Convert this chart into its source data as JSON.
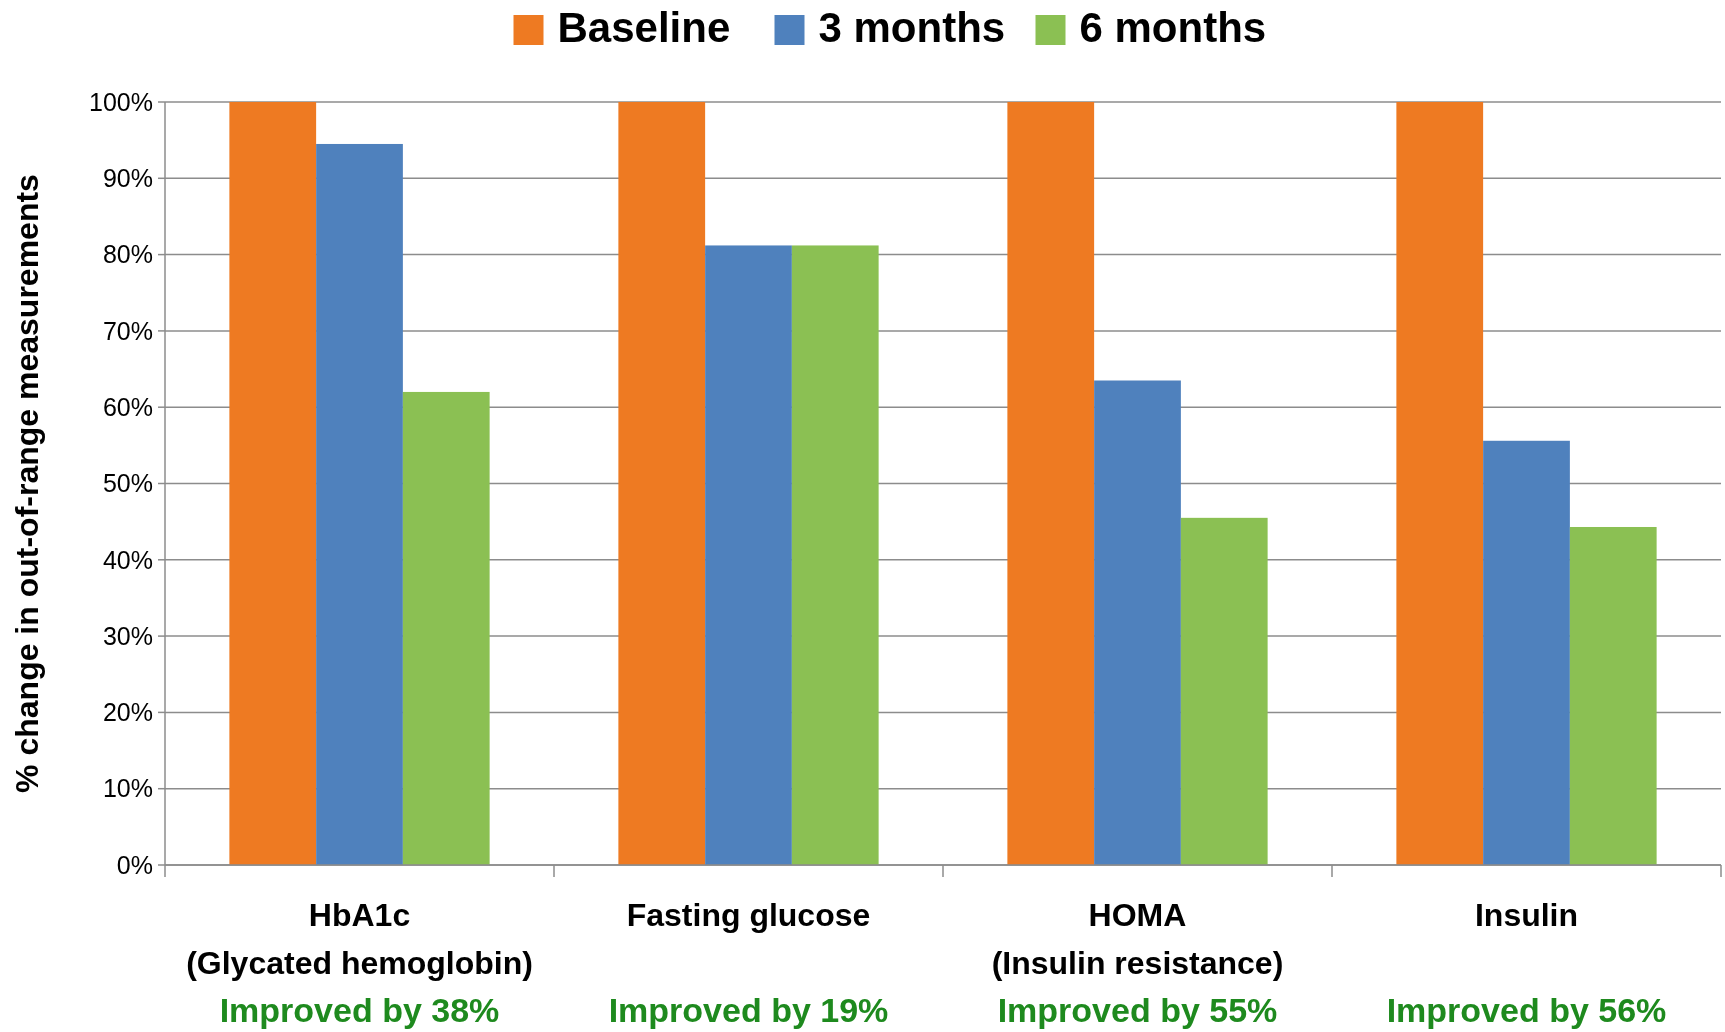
{
  "chart_data": {
    "type": "bar",
    "ylabel": "% change in out-of-range measurements",
    "categories": [
      "HbA1c\n(Glycated hemoglobin)",
      "Fasting glucose",
      "HOMA\n(Insulin resistance)",
      "Insulin"
    ],
    "series": [
      {
        "name": "Baseline",
        "color": "#ee7a22",
        "values": [
          100,
          100,
          100,
          100
        ]
      },
      {
        "name": "3 months",
        "color": "#4f81bd",
        "values": [
          94.5,
          81.2,
          63.5,
          55.6
        ]
      },
      {
        "name": "6 months",
        "color": "#8bc053",
        "values": [
          62.0,
          81.2,
          45.5,
          44.3
        ]
      }
    ],
    "ylim": [
      0,
      100
    ],
    "yticks": [
      {
        "value": 0,
        "label": "0%"
      },
      {
        "value": 10,
        "label": "10%"
      },
      {
        "value": 20,
        "label": "20%"
      },
      {
        "value": 30,
        "label": "30%"
      },
      {
        "value": 40,
        "label": "40%"
      },
      {
        "value": 50,
        "label": "50%"
      },
      {
        "value": 60,
        "label": "60%"
      },
      {
        "value": 70,
        "label": "70%"
      },
      {
        "value": 80,
        "label": "80%"
      },
      {
        "value": 90,
        "label": "90%"
      },
      {
        "value": 100,
        "label": "100%"
      }
    ],
    "grid": "y",
    "legend": "top",
    "annotations": [
      "Improved by 38%",
      "Improved by 19%",
      "Improved by 55%",
      "Improved by 56%"
    ]
  }
}
